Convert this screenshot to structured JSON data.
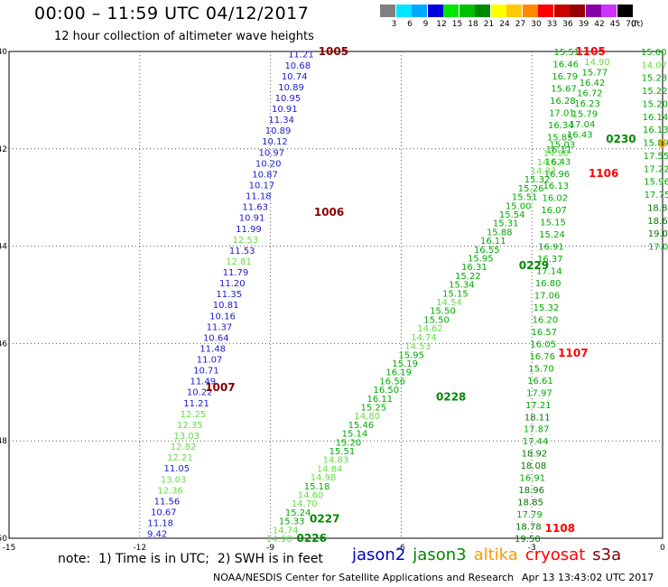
{
  "header": {
    "title": "00:00 – 11:59 UTC 04/12/2017",
    "subtitle": "12 hour collection of altimeter wave heights"
  },
  "color_legend": {
    "unit": "(ft)",
    "labels": [
      "3",
      "6",
      "9",
      "12",
      "15",
      "18",
      "21",
      "24",
      "27",
      "30",
      "33",
      "36",
      "39",
      "42",
      "45",
      "70"
    ],
    "colors": [
      "#7f7f7f",
      "#00e5ff",
      "#00a8ff",
      "#0000dc",
      "#00e600",
      "#00c000",
      "#008800",
      "#ffff00",
      "#ffc800",
      "#ff8800",
      "#ff0000",
      "#c80000",
      "#960000",
      "#8800aa",
      "#cc33ff",
      "#000000"
    ]
  },
  "footer": {
    "note": "note:  1) Time is in UTC;  2) SWH is in feet",
    "satellites": [
      {
        "name": "jason2",
        "color": "#0000cc"
      },
      {
        "name": "jason3",
        "color": "#008800"
      },
      {
        "name": "altika",
        "color": "#ff9900"
      },
      {
        "name": "cryosat",
        "color": "#ff0000"
      },
      {
        "name": "s3a",
        "color": "#880000"
      }
    ],
    "credit": "NOAA/NESDIS Center for Satellite Applications and Research",
    "timestamp": "Apr 13 13:43:02 UTC 2017"
  },
  "chart_data": {
    "type": "scatter",
    "title": "12 hour collection of altimeter wave heights",
    "xlabel": "",
    "ylabel": "",
    "xlim": [
      -15,
      0
    ],
    "ylim": [
      -50,
      -40
    ],
    "x_ticks": [
      -15,
      -12,
      -9,
      -6,
      -3,
      0
    ],
    "x_tick_labels": [
      "-15",
      "-12",
      "-9",
      "-6",
      "-3",
      "0"
    ],
    "y_ticks": [
      -40,
      -42,
      -44,
      -46,
      -48,
      -50
    ],
    "y_tick_labels": [
      "-40",
      "-42",
      "-44",
      "-46",
      "-48",
      "-50"
    ],
    "grid": "dotted",
    "series": [
      {
        "name": "jason2",
        "values": [
          "11.21",
          "10.68",
          "10.74",
          "10.89",
          "10.95",
          "10.91",
          "11.34",
          "10.89",
          "10.12",
          "10.97",
          "10.20",
          "10.87",
          "10.17",
          "11.18",
          "11.63",
          "10.91",
          "11.99",
          "12.53",
          "11.53",
          "12.81",
          "11.79",
          "11.20",
          "11.35",
          "10.81",
          "10.16",
          "11.37",
          "10.64",
          "11.48",
          "11.07",
          "10.71",
          "11.49",
          "10.22",
          "11.21",
          "12.25",
          "12.35",
          "13.03",
          "12.82",
          "12.21",
          "11.05",
          "13.03",
          "12.36",
          "11.56",
          "10.67",
          "11.18",
          "9.42"
        ],
        "start": [
          -8.3,
          -40.05
        ],
        "end": [
          -11.6,
          -49.9
        ]
      },
      {
        "name": "jason3",
        "values": [
          "14.90",
          "14.74",
          "15.33",
          "15.24",
          "14.70",
          "14.60",
          "15.18",
          "14.98",
          "14.84",
          "14.83",
          "15.51",
          "15.20",
          "15.14",
          "15.46",
          "14.80",
          "15.25",
          "16.11",
          "16.50",
          "16.56",
          "16.19",
          "15.19",
          "15.95",
          "14.53",
          "14.74",
          "14.62",
          "15.50",
          "15.50",
          "14.54",
          "15.15",
          "15.34",
          "15.22",
          "16.31",
          "15.95",
          "16.55",
          "16.11",
          "15.88",
          "15.31",
          "15.54",
          "15.00",
          "15.51",
          "15.26",
          "15.32",
          "14.32",
          "14.62",
          "14.90",
          "15.03"
        ],
        "start": [
          -8.8,
          -50.0
        ],
        "end": [
          -2.3,
          -41.9
        ]
      },
      {
        "name": "jason3",
        "values": [
          "19.50",
          "18.78",
          "17.79",
          "18.85",
          "18.96",
          "16.91",
          "18.08",
          "18.92",
          "17.44",
          "17.87",
          "18.11",
          "17.21",
          "17.97",
          "16.61",
          "15.70",
          "16.76",
          "16.05",
          "16.57",
          "16.20",
          "15.32",
          "17.06",
          "16.80",
          "17.14",
          "16.37",
          "16.91",
          "15.24",
          "15.15",
          "16.07",
          "16.02",
          "16.13",
          "16.96",
          "16.43",
          "16.11",
          "15.85",
          "16.34",
          "17.01",
          "16.28",
          "15.67",
          "16.79",
          "16.46",
          "15.51"
        ],
        "start": [
          -3.1,
          -50.0
        ],
        "end": [
          -2.2,
          -40.0
        ]
      },
      {
        "name": "jason3",
        "values": [
          "15.00",
          "14.07",
          "15.23",
          "15.22",
          "15.20",
          "16.14",
          "16.13",
          "15.89",
          "17.55",
          "17.22",
          "15.96",
          "17.75",
          "18.8",
          "18.6",
          "19.0",
          "17.0"
        ],
        "start": [
          -0.2,
          -40.0
        ],
        "end": [
          -0.1,
          -44.0
        ]
      },
      {
        "name": "jason3",
        "values": [
          "14.90",
          "15.77",
          "16.42",
          "16.72",
          "16.23",
          "15.79",
          "17.04",
          "16.43"
        ],
        "start": [
          -1.5,
          -40.2
        ],
        "end": [
          -1.9,
          -41.7
        ]
      }
    ],
    "time_labels": [
      {
        "text": "1005",
        "x": -7.9,
        "y": -40.0,
        "sat": "s3a"
      },
      {
        "text": "1006",
        "x": -8.0,
        "y": -43.3,
        "sat": "s3a"
      },
      {
        "text": "1007",
        "x": -10.5,
        "y": -46.9,
        "sat": "s3a"
      },
      {
        "text": "0226",
        "x": -8.4,
        "y": -50.0,
        "sat": "jason3"
      },
      {
        "text": "0227",
        "x": -8.1,
        "y": -49.6,
        "sat": "jason3"
      },
      {
        "text": "0228",
        "x": -5.2,
        "y": -47.1,
        "sat": "jason3"
      },
      {
        "text": "0229",
        "x": -3.3,
        "y": -44.4,
        "sat": "jason3"
      },
      {
        "text": "0230",
        "x": -1.3,
        "y": -41.8,
        "sat": "jason3"
      },
      {
        "text": "1105",
        "x": -2.0,
        "y": -40.0,
        "sat": "cryosat"
      },
      {
        "text": "1106",
        "x": -1.7,
        "y": -42.5,
        "sat": "cryosat"
      },
      {
        "text": "1107",
        "x": -2.4,
        "y": -46.2,
        "sat": "cryosat"
      },
      {
        "text": "1108",
        "x": -2.7,
        "y": -49.8,
        "sat": "cryosat"
      },
      {
        "text": "0",
        "x": -0.1,
        "y": -41.9,
        "sat": "altika"
      }
    ]
  }
}
